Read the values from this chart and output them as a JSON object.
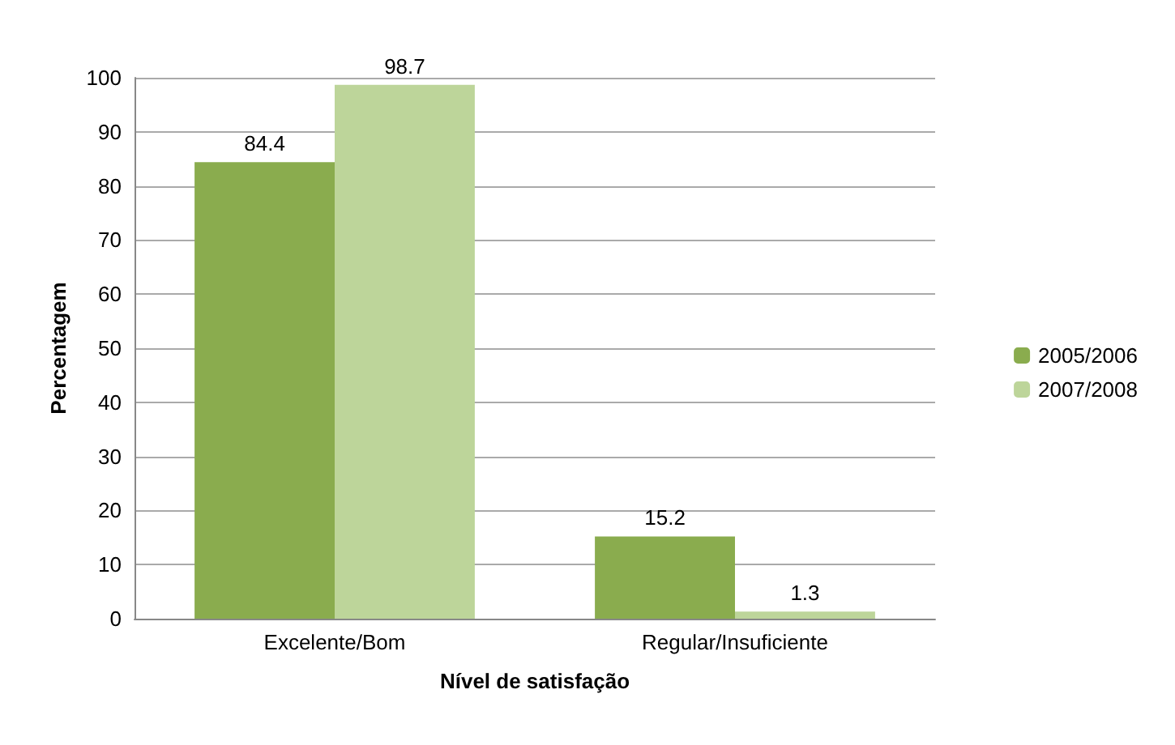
{
  "chart_data": {
    "type": "bar",
    "xlabel": "Nível de satisfação",
    "ylabel": "Percentagem",
    "categories": [
      "Excelente/Bom",
      "Regular/Insuficiente"
    ],
    "series": [
      {
        "name": "2005/2006",
        "color": "#8aac4e",
        "values": [
          84.4,
          15.2
        ]
      },
      {
        "name": "2007/2008",
        "color": "#bdd59a",
        "values": [
          98.7,
          1.3
        ]
      }
    ],
    "ylim": [
      0,
      100
    ],
    "yticks": [
      0,
      10,
      20,
      30,
      40,
      50,
      60,
      70,
      80,
      90,
      100
    ],
    "grid": "y",
    "legend": "right",
    "data_labels": true
  }
}
